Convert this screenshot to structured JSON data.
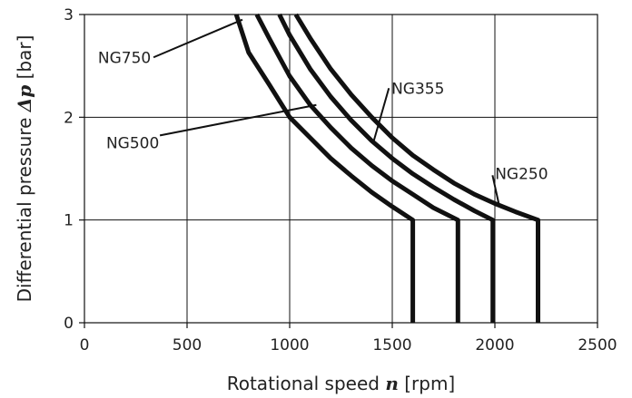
{
  "chart_data": {
    "type": "line",
    "title": "",
    "xlabel": {
      "prefix": "Rotational speed ",
      "symbol": "n",
      "suffix": " [rpm]"
    },
    "ylabel": {
      "prefix": "Differential pressure ",
      "symbol": "Δp",
      "suffix": " [bar]"
    },
    "xlim": [
      0,
      2500
    ],
    "ylim": [
      0,
      3
    ],
    "xticks": [
      0,
      500,
      1000,
      1500,
      2000,
      2500
    ],
    "yticks": [
      0,
      1,
      2,
      3
    ],
    "grid": true,
    "legend": "none",
    "line_color": "#111111",
    "series": [
      {
        "name": "NG750",
        "x": [
          740,
          800,
          900,
          1000,
          1100,
          1200,
          1300,
          1400,
          1500,
          1600,
          1600
        ],
        "y": [
          3.0,
          2.63,
          2.32,
          2.0,
          1.8,
          1.6,
          1.43,
          1.27,
          1.13,
          1.0,
          0.0
        ]
      },
      {
        "name": "NG500",
        "x": [
          840,
          900,
          1000,
          1100,
          1200,
          1300,
          1400,
          1500,
          1600,
          1700,
          1820,
          1820
        ],
        "y": [
          3.0,
          2.77,
          2.4,
          2.12,
          1.9,
          1.7,
          1.53,
          1.38,
          1.25,
          1.12,
          1.0,
          0.0
        ]
      },
      {
        "name": "NG355",
        "x": [
          950,
          1000,
          1100,
          1200,
          1300,
          1400,
          1500,
          1600,
          1700,
          1800,
          1900,
          1990,
          1990
        ],
        "y": [
          3.0,
          2.8,
          2.47,
          2.2,
          1.97,
          1.77,
          1.6,
          1.45,
          1.32,
          1.2,
          1.09,
          1.0,
          0.0
        ]
      },
      {
        "name": "NG250",
        "x": [
          1030,
          1100,
          1200,
          1300,
          1400,
          1500,
          1600,
          1700,
          1800,
          1900,
          2000,
          2100,
          2210,
          2210
        ],
        "y": [
          3.0,
          2.77,
          2.47,
          2.22,
          2.0,
          1.8,
          1.63,
          1.49,
          1.36,
          1.25,
          1.16,
          1.08,
          1.0,
          0.0
        ]
      }
    ],
    "annotations": [
      {
        "text": "NG750",
        "x": 195,
        "y": 2.53,
        "line_to": [
          770,
          2.95
        ]
      },
      {
        "text": "NG500",
        "x": 235,
        "y": 1.7,
        "line_to": [
          1130,
          2.12
        ]
      },
      {
        "text": "NG355",
        "x": 1625,
        "y": 2.23,
        "line_to": [
          1410,
          1.77
        ]
      },
      {
        "text": "NG250",
        "x": 2130,
        "y": 1.4,
        "line_to": [
          2020,
          1.15
        ]
      }
    ]
  }
}
